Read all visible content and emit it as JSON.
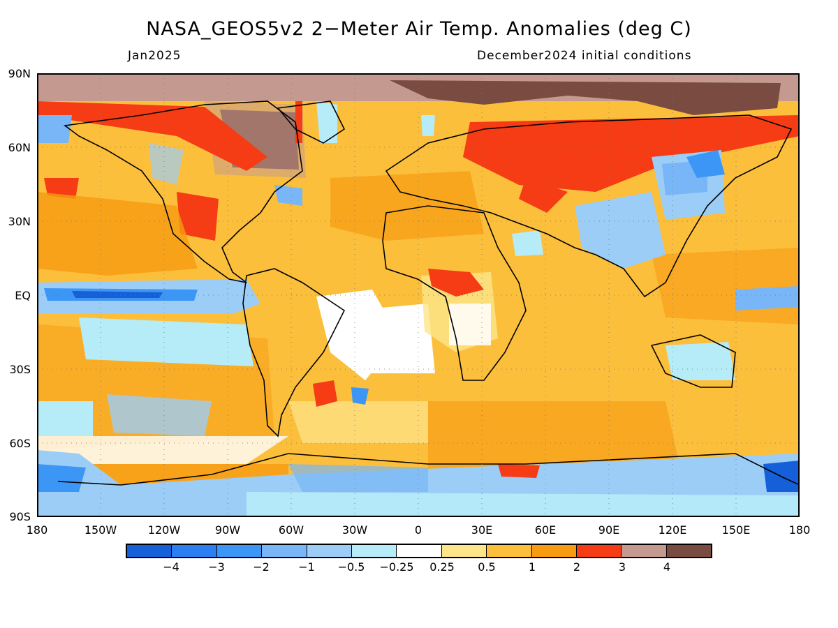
{
  "title": "NASA_GEOS5v2 2-Meter Air Temp. Anomalies (deg C)",
  "subtitle_left": "Jan2025",
  "subtitle_right": "December2024 initial conditions",
  "lat_labels": [
    "90N",
    "60N",
    "30N",
    "EQ",
    "30S",
    "60S",
    "90S"
  ],
  "lon_labels": [
    "180",
    "150W",
    "120W",
    "90W",
    "60W",
    "30W",
    "0",
    "30E",
    "60E",
    "90E",
    "120E",
    "150E",
    "180"
  ],
  "colorbar": {
    "colors": [
      "#1560d8",
      "#2b7ff2",
      "#3c96f5",
      "#78b6f7",
      "#9ccdf6",
      "#b6ecf8",
      "#ffffff",
      "#fde68a",
      "#fbbf3c",
      "#f89b12",
      "#f53c14",
      "#c49a90",
      "#7a4b40"
    ],
    "labels": [
      "-4",
      "-3",
      "-2",
      "-1",
      "-0.5",
      "-0.25",
      "0.25",
      "0.5",
      "1",
      "2",
      "3",
      "4"
    ]
  }
}
